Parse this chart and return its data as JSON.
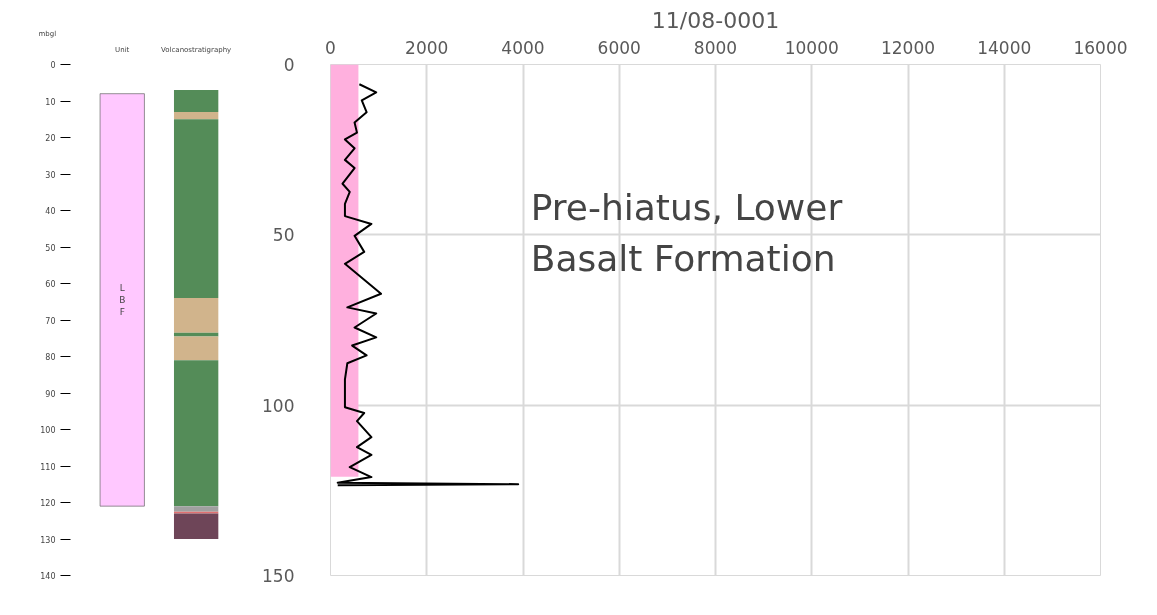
{
  "chart_data": [
    {
      "type": "bar",
      "categories": [
        "Unit",
        "Volcanostratigraphy"
      ],
      "ylabel": "mbgl",
      "ylim": [
        140,
        0
      ],
      "yticks": [
        0,
        10,
        20,
        30,
        40,
        50,
        60,
        70,
        80,
        90,
        100,
        110,
        120,
        130,
        140
      ],
      "grid": false,
      "series": [
        {
          "name": "LBF",
          "color": "#ffc8ff",
          "values": [
            113,
            null
          ],
          "base": [
            8,
            null
          ]
        },
        {
          "color": "#548c58",
          "values": [
            null,
            6
          ],
          "base": [
            null,
            7
          ]
        },
        {
          "color": "#d1b48c",
          "values": [
            null,
            2
          ],
          "base": [
            null,
            13
          ]
        },
        {
          "color": "#548c58",
          "values": [
            null,
            49
          ],
          "base": [
            null,
            15
          ]
        },
        {
          "color": "#d1b48c",
          "values": [
            null,
            9.5
          ],
          "base": [
            null,
            64
          ]
        },
        {
          "color": "#548c58",
          "values": [
            null,
            1
          ],
          "base": [
            null,
            73.5
          ]
        },
        {
          "color": "#d1b48c",
          "values": [
            null,
            6.5
          ],
          "base": [
            null,
            74.5
          ]
        },
        {
          "color": "#548c58",
          "values": [
            null,
            40
          ],
          "base": [
            null,
            81
          ]
        },
        {
          "color": "#a0a0a0",
          "values": [
            null,
            1.5
          ],
          "base": [
            null,
            121
          ]
        },
        {
          "color": "#e07070",
          "values": [
            null,
            0.5
          ],
          "base": [
            null,
            122.5
          ]
        },
        {
          "color": "#6e4558",
          "values": [
            null,
            7
          ],
          "base": [
            null,
            123
          ]
        }
      ]
    },
    {
      "type": "line",
      "title": "11/08-0001",
      "orientation": "horizontal",
      "xlim": [
        0,
        16000
      ],
      "xticks": [
        0,
        2000,
        4000,
        6000,
        8000,
        10000,
        12000,
        14000,
        16000
      ],
      "ylim": [
        150,
        0
      ],
      "yticks": [
        0,
        50,
        100,
        150
      ],
      "grid": true,
      "annotations": [
        "Pre-hiatus, Lower Basalt Formation"
      ],
      "series": [
        {
          "type": "area",
          "color": "#ffb0de",
          "x": [
            0,
            121
          ],
          "values": [
            580,
            580
          ]
        },
        {
          "type": "line",
          "color": "#000000",
          "x": [
            5.8,
            8.2,
            10.5,
            14,
            17,
            20,
            22,
            24.6,
            28,
            30.4,
            35,
            37.4,
            40.9,
            44.5,
            46.8,
            50.3,
            55,
            58.5,
            67.3,
            71.3,
            73.1,
            77.2,
            80.1,
            82.5,
            85.4,
            87.7,
            92.4,
            98.2,
            100.6,
            102.3,
            104.7,
            109.4,
            112.3,
            114.6,
            118.2,
            121.1,
            122.8,
            123.2,
            123.5
          ],
          "values": [
            600,
            950,
            650,
            750,
            500,
            550,
            300,
            500,
            300,
            500,
            250,
            400,
            300,
            300,
            850,
            500,
            700,
            300,
            1050,
            350,
            950,
            500,
            950,
            450,
            750,
            350,
            300,
            300,
            300,
            700,
            550,
            850,
            550,
            850,
            400,
            850,
            150,
            3900,
            150
          ]
        }
      ]
    }
  ]
}
